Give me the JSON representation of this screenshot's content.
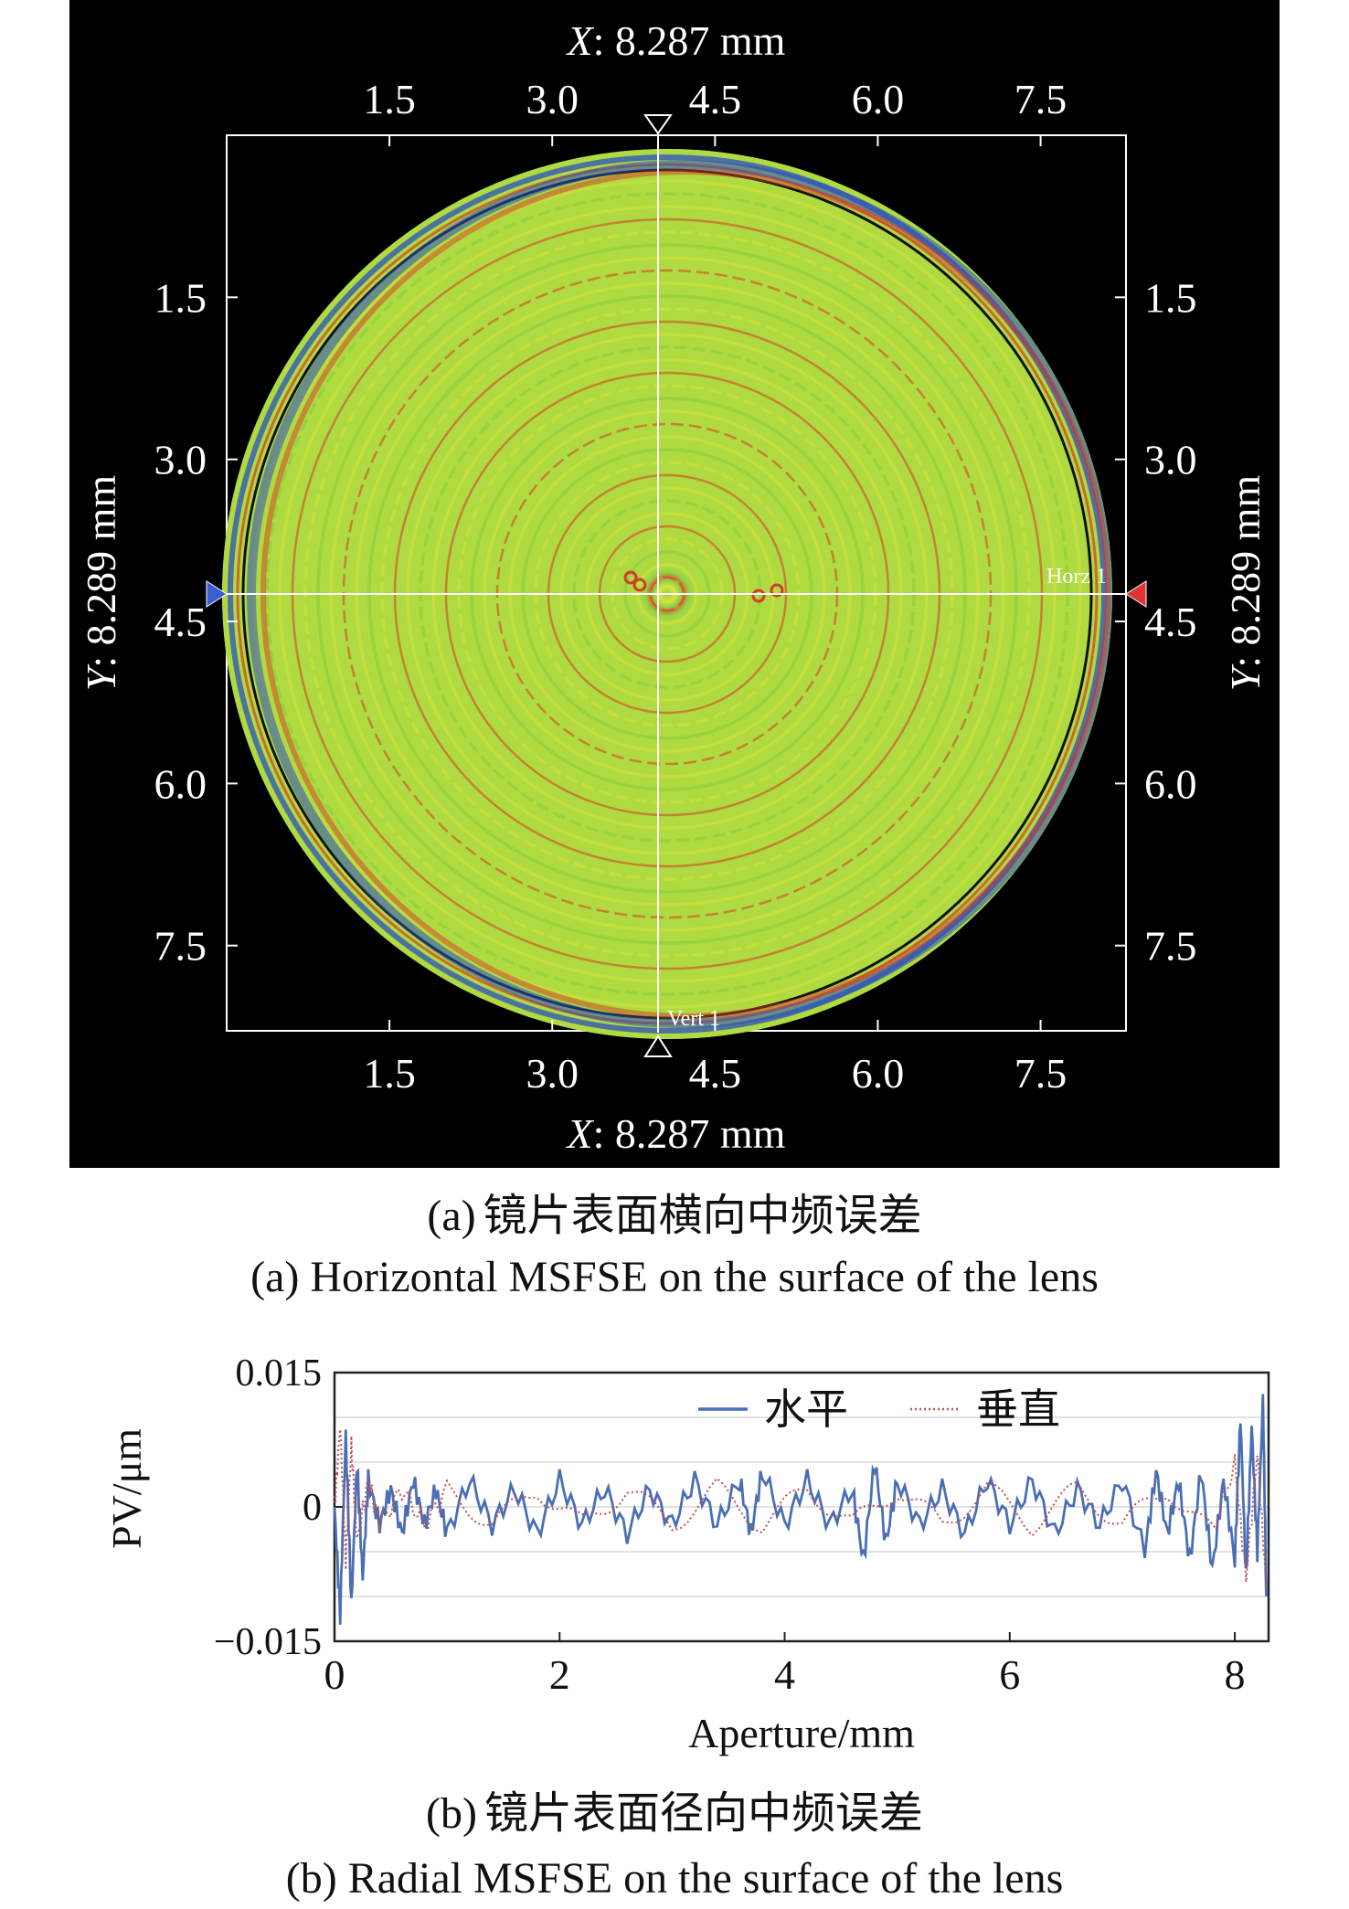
{
  "panel_a": {
    "x_axis_label_var": "X",
    "x_axis_label_val": ": 8.287 mm",
    "y_axis_label_var": "Y",
    "y_axis_label_val": ": 8.289 mm",
    "x_ticks": [
      "1.5",
      "3.0",
      "4.5",
      "6.0",
      "7.5"
    ],
    "y_ticks": [
      "1.5",
      "3.0",
      "4.5",
      "6.0",
      "7.5"
    ],
    "horz_marker_label": "Horz 1",
    "vert_marker_label": "Vert 1",
    "caption_cn_prefix": "(a)",
    "caption_cn": "镜片表面横向中频误差",
    "caption_en": "(a) Horizontal MSFSE on the surface of the lens"
  },
  "chart_data": [
    {
      "type": "heatmap",
      "xlabel": "X: 8.287 mm",
      "ylabel": "Y: 8.289 mm",
      "x_range": [
        0,
        8.287
      ],
      "y_range": [
        0,
        8.289
      ],
      "x_ticks": [
        1.5,
        3.0,
        4.5,
        6.0,
        7.5
      ],
      "y_ticks": [
        1.5,
        3.0,
        4.5,
        6.0,
        7.5
      ],
      "markers": {
        "horizontal": "Horz 1",
        "vertical": "Vert 1"
      },
      "colors": {
        "background": "#000000",
        "dominant": "#8fd14a",
        "ridge": "#e8e83a",
        "trough": "#d63a2a",
        "edge": "#2b4fbf"
      }
    },
    {
      "type": "line",
      "xlabel": "Aperture/mm",
      "ylabel": "PV/μm",
      "xlim": [
        0,
        8.3
      ],
      "ylim": [
        -0.015,
        0.015
      ],
      "x_ticks": [
        0,
        2,
        4,
        6,
        8
      ],
      "y_ticks": [
        "0.015",
        "0",
        "−0.015"
      ],
      "legend_position": "top-right",
      "grid": true,
      "series": [
        {
          "name": "水平",
          "color": "#4a6fb5",
          "style": "solid",
          "x": [
            0.0,
            0.05,
            0.1,
            0.15,
            0.2,
            0.25,
            0.3,
            0.4,
            0.5,
            0.6,
            0.7,
            0.8,
            0.9,
            1.0,
            1.2,
            1.4,
            1.6,
            1.8,
            2.0,
            2.2,
            2.4,
            2.6,
            2.8,
            3.0,
            3.2,
            3.4,
            3.6,
            3.7,
            3.8,
            4.0,
            4.2,
            4.4,
            4.6,
            4.7,
            4.8,
            4.9,
            5.0,
            5.2,
            5.4,
            5.6,
            5.8,
            6.0,
            6.2,
            6.4,
            6.6,
            6.8,
            7.0,
            7.2,
            7.3,
            7.4,
            7.5,
            7.6,
            7.7,
            7.8,
            7.9,
            8.0,
            8.05,
            8.1,
            8.15,
            8.2,
            8.25,
            8.28
          ],
          "y": [
            0.0,
            -0.012,
            0.008,
            -0.011,
            0.005,
            -0.008,
            0.003,
            -0.002,
            0.002,
            -0.003,
            0.003,
            -0.002,
            0.002,
            -0.003,
            0.003,
            -0.002,
            0.002,
            -0.003,
            0.003,
            -0.002,
            0.002,
            -0.003,
            0.002,
            -0.002,
            0.003,
            -0.002,
            0.003,
            -0.003,
            0.004,
            -0.002,
            0.003,
            -0.002,
            0.002,
            -0.006,
            0.005,
            -0.004,
            0.003,
            -0.002,
            0.002,
            -0.003,
            0.003,
            -0.002,
            0.003,
            -0.003,
            0.002,
            -0.002,
            0.003,
            -0.005,
            0.004,
            -0.003,
            0.003,
            -0.006,
            0.004,
            -0.007,
            0.003,
            -0.006,
            0.01,
            -0.008,
            0.009,
            -0.005,
            0.012,
            -0.01
          ]
        },
        {
          "name": "垂直",
          "color": "#c0504d",
          "style": "dotted",
          "x": [
            0.0,
            0.05,
            0.1,
            0.15,
            0.2,
            0.3,
            0.4,
            0.6,
            0.8,
            1.0,
            1.4,
            1.8,
            2.2,
            2.6,
            3.0,
            3.4,
            3.8,
            4.2,
            4.6,
            5.0,
            5.4,
            5.8,
            6.2,
            6.6,
            7.0,
            7.4,
            7.8,
            8.0,
            8.1,
            8.2,
            8.28
          ],
          "y": [
            0.0,
            0.009,
            -0.006,
            0.007,
            -0.004,
            0.003,
            -0.002,
            0.002,
            -0.002,
            0.002,
            -0.002,
            0.002,
            -0.002,
            0.002,
            -0.002,
            0.002,
            -0.002,
            0.002,
            -0.002,
            0.002,
            -0.002,
            0.002,
            -0.002,
            0.002,
            -0.002,
            0.002,
            -0.003,
            0.005,
            -0.008,
            0.006,
            -0.009
          ]
        }
      ]
    }
  ],
  "panel_b": {
    "caption_cn_prefix": "(b)",
    "caption_cn": "镜片表面径向中频误差",
    "caption_en": "(b) Radial MSFSE on the surface of the lens"
  }
}
